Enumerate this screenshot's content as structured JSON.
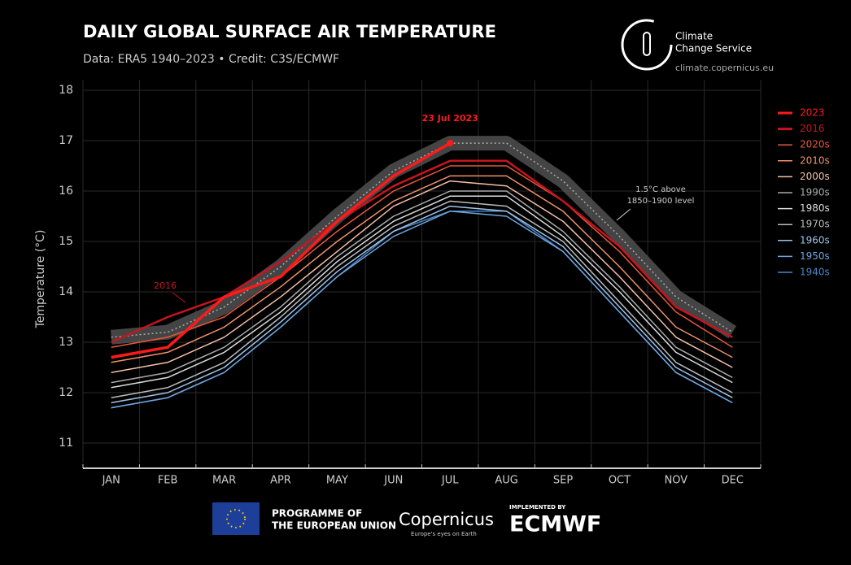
{
  "chart_data": {
    "type": "line",
    "title": "DAILY GLOBAL SURFACE AIR TEMPERATURE",
    "subtitle": "Data: ERA5 1940–2023 • Credit: C3S/ECMWF",
    "y_label": "Temperature (°C)",
    "categories": [
      "JAN",
      "FEB",
      "MAR",
      "APR",
      "MAY",
      "JUN",
      "JUL",
      "AUG",
      "SEP",
      "OCT",
      "NOV",
      "DEC"
    ],
    "ylim": [
      10.5,
      18.2
    ],
    "yticks": [
      11,
      12,
      13,
      14,
      15,
      16,
      17,
      18
    ],
    "grid": true,
    "legend": "right",
    "threshold": {
      "name": "1.5°C above",
      "name2": "1850–1900 level",
      "color": "#555555",
      "values": [
        13.1,
        13.2,
        13.7,
        14.5,
        15.5,
        16.4,
        16.95,
        16.95,
        16.2,
        15.1,
        13.9,
        13.2
      ]
    },
    "series": [
      {
        "name": "2023",
        "color": "#ff1a1a",
        "values": [
          12.7,
          12.9,
          13.9,
          14.3,
          15.4,
          16.3,
          16.95,
          null,
          null,
          null,
          null,
          null
        ]
      },
      {
        "name": "2016",
        "color": "#c8141e",
        "values": [
          13.0,
          13.5,
          13.9,
          14.6,
          15.4,
          16.1,
          16.6,
          16.6,
          15.8,
          14.9,
          13.7,
          13.1
        ]
      },
      {
        "name": "2020s",
        "color": "#e8583a",
        "values": [
          12.9,
          13.1,
          13.5,
          14.3,
          15.2,
          16.0,
          16.5,
          16.5,
          15.8,
          14.8,
          13.6,
          12.9
        ]
      },
      {
        "name": "2010s",
        "color": "#f0906a",
        "values": [
          12.6,
          12.8,
          13.3,
          14.1,
          15.0,
          15.8,
          16.3,
          16.3,
          15.6,
          14.5,
          13.3,
          12.7
        ]
      },
      {
        "name": "2000s",
        "color": "#f4c0a8",
        "values": [
          12.4,
          12.6,
          13.1,
          13.9,
          14.8,
          15.7,
          16.2,
          16.1,
          15.4,
          14.3,
          13.1,
          12.5
        ]
      },
      {
        "name": "1990s",
        "color": "#aaaaaa",
        "values": [
          12.2,
          12.4,
          12.9,
          13.7,
          14.7,
          15.5,
          16.0,
          16.0,
          15.2,
          14.1,
          12.9,
          12.3
        ]
      },
      {
        "name": "1980s",
        "color": "#dddddd",
        "values": [
          12.1,
          12.3,
          12.8,
          13.6,
          14.6,
          15.4,
          15.9,
          15.9,
          15.1,
          14.0,
          12.8,
          12.2
        ]
      },
      {
        "name": "1970s",
        "color": "#bbbbbb",
        "values": [
          11.9,
          12.1,
          12.6,
          13.5,
          14.5,
          15.3,
          15.8,
          15.7,
          15.0,
          13.8,
          12.6,
          12.0
        ]
      },
      {
        "name": "1960s",
        "color": "#9ec4e8",
        "values": [
          11.8,
          12.0,
          12.5,
          13.4,
          14.4,
          15.2,
          15.7,
          15.6,
          14.9,
          13.7,
          12.5,
          11.9
        ]
      },
      {
        "name": "1950s",
        "color": "#6fa4dc",
        "values": [
          11.7,
          11.9,
          12.4,
          13.3,
          14.3,
          15.1,
          15.6,
          15.5,
          14.8,
          13.6,
          12.4,
          11.8
        ]
      },
      {
        "name": "1940s",
        "color": "#4a86c8",
        "values": [
          11.7,
          11.9,
          12.4,
          13.3,
          14.3,
          15.2,
          15.6,
          15.6,
          14.8,
          13.6,
          12.4,
          11.8
        ]
      }
    ],
    "annotations": [
      "23 Jul 2023",
      "2016"
    ],
    "logo": {
      "line1": "Climate",
      "line2": "Change Service",
      "url": "climate.copernicus.eu"
    },
    "footer": {
      "eu1": "PROGRAMME OF",
      "eu2": "THE EUROPEAN UNION",
      "copernicus": "Copernicus",
      "tagline": "Europe's eyes on Earth",
      "implemented": "IMPLEMENTED BY",
      "ecmwf": "ECMWF"
    }
  }
}
